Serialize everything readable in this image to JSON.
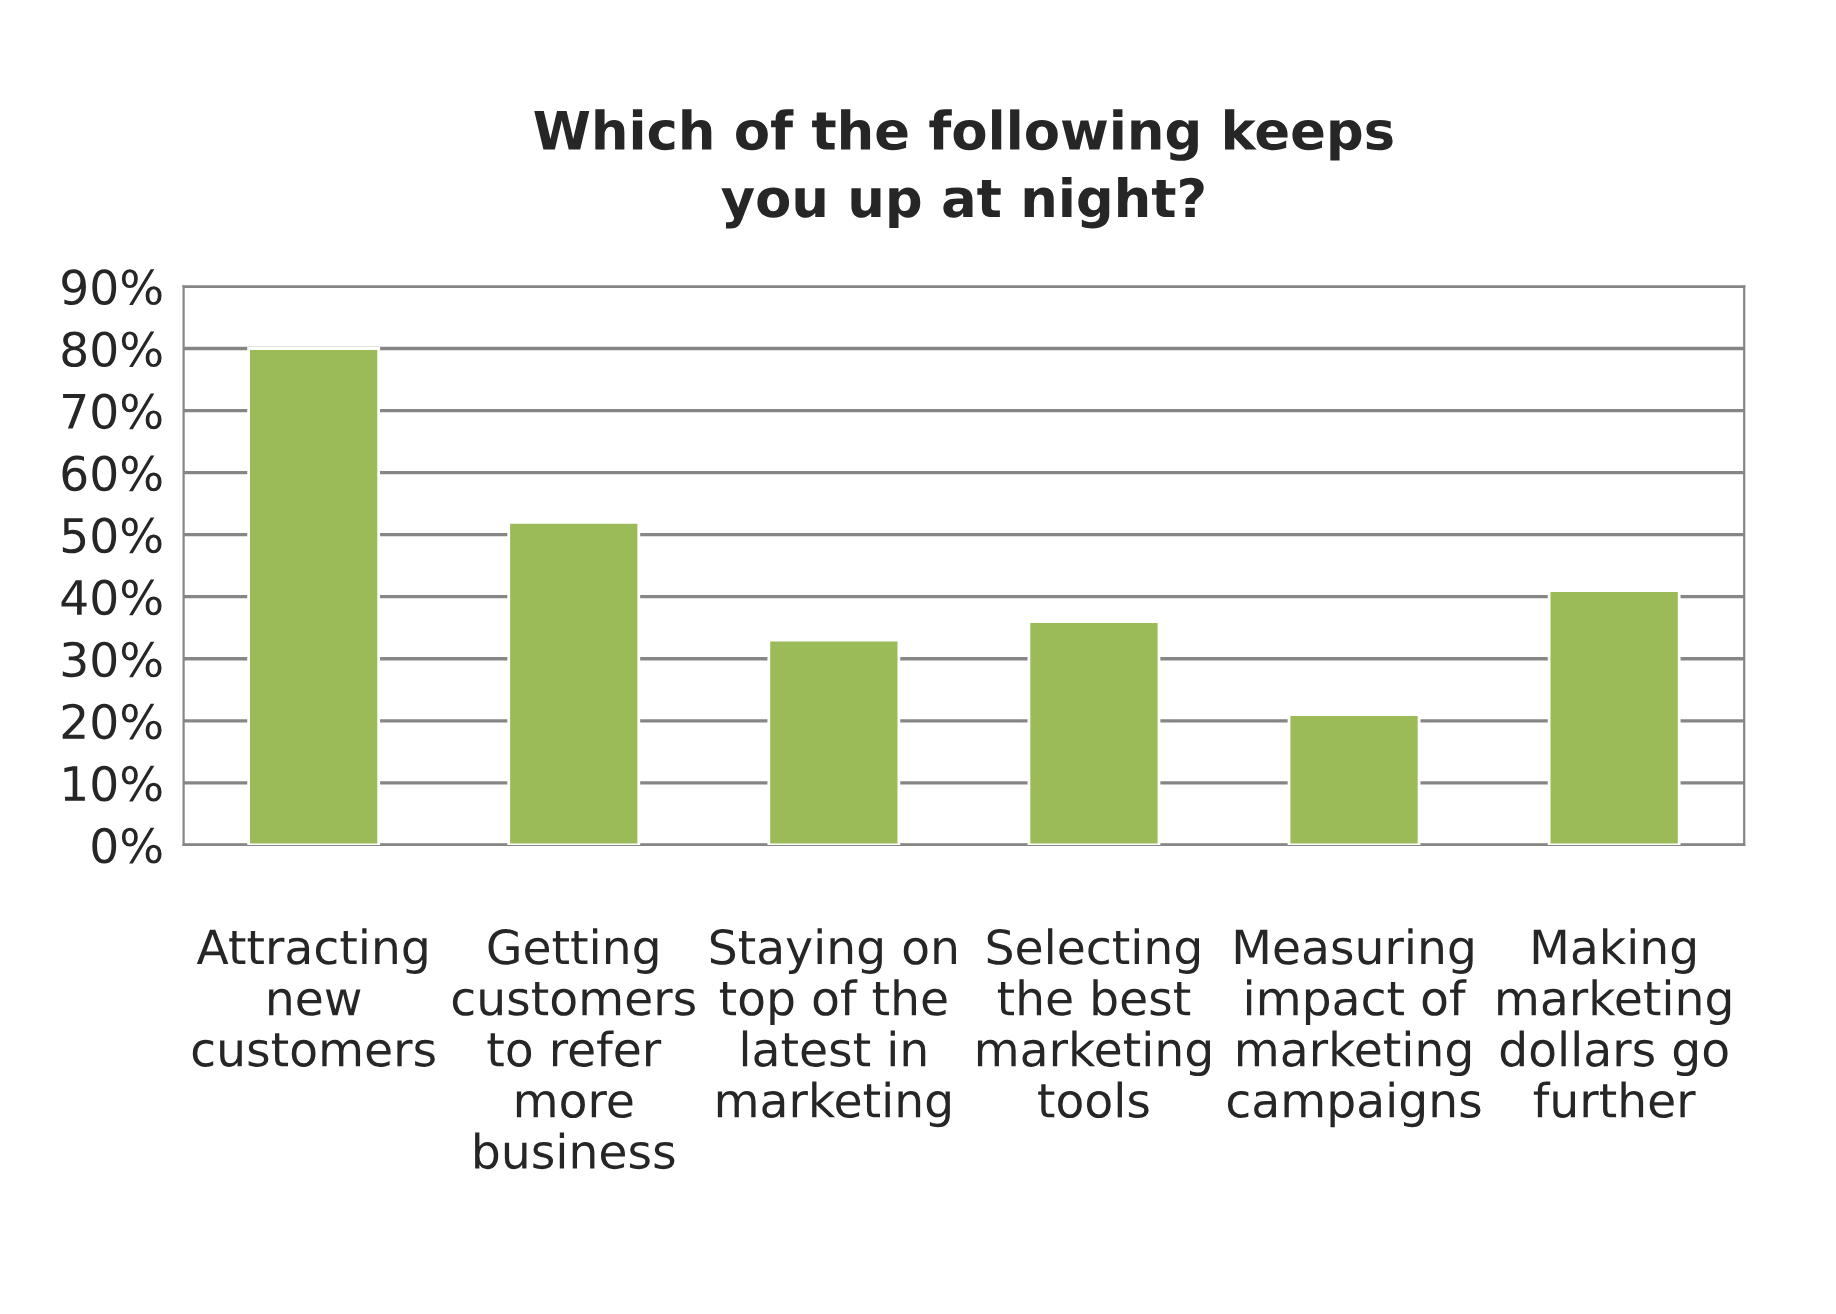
{
  "chart_data": {
    "type": "bar",
    "title": "Which of the following keeps\nyou up at night?",
    "categories": [
      "Attracting\nnew\ncustomers",
      "Getting\ncustomers\nto refer\nmore\nbusiness",
      "Staying on\ntop of the\nlatest in\nmarketing",
      "Selecting\nthe best\nmarketing\ntools",
      "Measuring\nimpact of\nmarketing\ncampaigns",
      "Making\nmarketing\ndollars go\nfurther"
    ],
    "values": [
      0.8,
      0.52,
      0.33,
      0.36,
      0.21,
      0.41
    ],
    "color": "#9bbb59",
    "ylim": [
      0,
      0.9
    ],
    "yticks": [
      {
        "value": 0,
        "label": "0%"
      },
      {
        "value": 0.1,
        "label": "10%"
      },
      {
        "value": 0.2,
        "label": "20%"
      },
      {
        "value": 0.3,
        "label": "30%"
      },
      {
        "value": 0.4,
        "label": "40%"
      },
      {
        "value": 0.5,
        "label": "50%"
      },
      {
        "value": 0.6,
        "label": "60%"
      },
      {
        "value": 0.7,
        "label": "70%"
      },
      {
        "value": 0.8,
        "label": "80%"
      },
      {
        "value": 0.9,
        "label": "90%"
      }
    ],
    "grid": "y",
    "legend": false
  }
}
